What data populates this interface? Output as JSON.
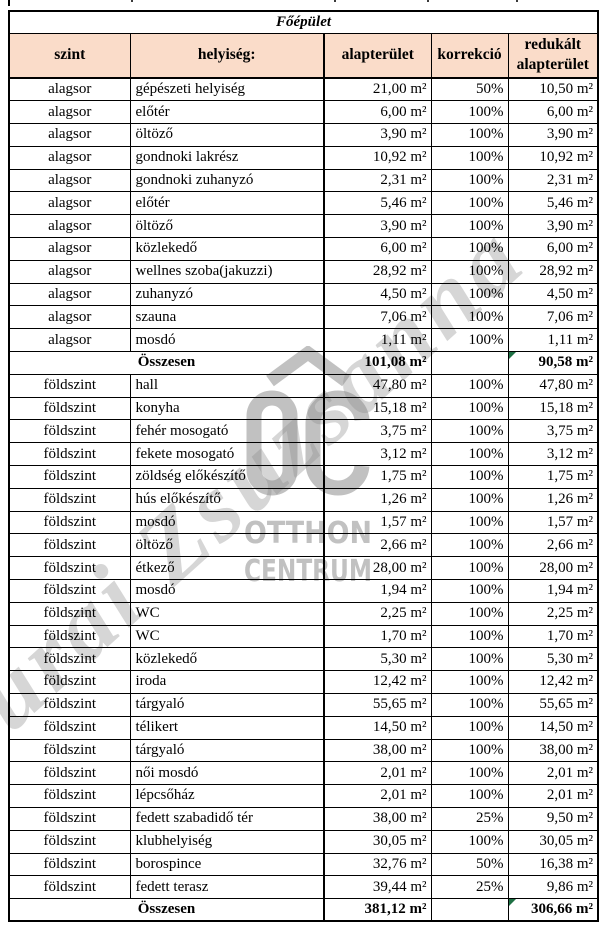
{
  "table": {
    "title": "Főépület",
    "columns": [
      "szint",
      "helyiség:",
      "alapterület",
      "korrekció",
      "redukált alapterület"
    ],
    "sections": [
      {
        "level": "alagsor",
        "rows": [
          {
            "szint": "alagsor",
            "helyiseg": "gépészeti helyiség",
            "alapterulet": "21,00 m²",
            "korrekcio": "50%",
            "redukalt": "10,50 m²"
          },
          {
            "szint": "alagsor",
            "helyiseg": "előtér",
            "alapterulet": "6,00 m²",
            "korrekcio": "100%",
            "redukalt": "6,00 m²"
          },
          {
            "szint": "alagsor",
            "helyiseg": "öltöző",
            "alapterulet": "3,90 m²",
            "korrekcio": "100%",
            "redukalt": "3,90 m²"
          },
          {
            "szint": "alagsor",
            "helyiseg": "gondnoki lakrész",
            "alapterulet": "10,92 m²",
            "korrekcio": "100%",
            "redukalt": "10,92 m²"
          },
          {
            "szint": "alagsor",
            "helyiseg": "gondnoki zuhanyzó",
            "alapterulet": "2,31 m²",
            "korrekcio": "100%",
            "redukalt": "2,31 m²"
          },
          {
            "szint": "alagsor",
            "helyiseg": "előtér",
            "alapterulet": "5,46 m²",
            "korrekcio": "100%",
            "redukalt": "5,46 m²"
          },
          {
            "szint": "alagsor",
            "helyiseg": "öltöző",
            "alapterulet": "3,90 m²",
            "korrekcio": "100%",
            "redukalt": "3,90 m²"
          },
          {
            "szint": "alagsor",
            "helyiseg": "közlekedő",
            "alapterulet": "6,00 m²",
            "korrekcio": "100%",
            "redukalt": "6,00 m²"
          },
          {
            "szint": "alagsor",
            "helyiseg": "wellnes szoba(jakuzzi)",
            "alapterulet": "28,92 m²",
            "korrekcio": "100%",
            "redukalt": "28,92 m²"
          },
          {
            "szint": "alagsor",
            "helyiseg": "zuhanyzó",
            "alapterulet": "4,50 m²",
            "korrekcio": "100%",
            "redukalt": "4,50 m²"
          },
          {
            "szint": "alagsor",
            "helyiseg": "szauna",
            "alapterulet": "7,06 m²",
            "korrekcio": "100%",
            "redukalt": "7,06 m²"
          },
          {
            "szint": "alagsor",
            "helyiseg": "mosdó",
            "alapterulet": "1,11 m²",
            "korrekcio": "100%",
            "redukalt": "1,11 m²"
          }
        ],
        "total": {
          "label": "Összesen",
          "alapterulet": "101,08 m²",
          "korrekcio": "",
          "redukalt": "90,58 m²",
          "has_marker": true
        }
      },
      {
        "level": "földszint",
        "rows": [
          {
            "szint": "földszint",
            "helyiseg": "hall",
            "alapterulet": "47,80 m²",
            "korrekcio": "100%",
            "redukalt": "47,80 m²"
          },
          {
            "szint": "földszint",
            "helyiseg": "konyha",
            "alapterulet": "15,18 m²",
            "korrekcio": "100%",
            "redukalt": "15,18 m²"
          },
          {
            "szint": "földszint",
            "helyiseg": "fehér mosogató",
            "alapterulet": "3,75 m²",
            "korrekcio": "100%",
            "redukalt": "3,75 m²"
          },
          {
            "szint": "földszint",
            "helyiseg": "fekete mosogató",
            "alapterulet": "3,12 m²",
            "korrekcio": "100%",
            "redukalt": "3,12 m²"
          },
          {
            "szint": "földszint",
            "helyiseg": "zöldség előkészítő",
            "alapterulet": "1,75 m²",
            "korrekcio": "100%",
            "redukalt": "1,75 m²"
          },
          {
            "szint": "földszint",
            "helyiseg": "hús előkészítő",
            "alapterulet": "1,26 m²",
            "korrekcio": "100%",
            "redukalt": "1,26 m²"
          },
          {
            "szint": "földszint",
            "helyiseg": "mosdó",
            "alapterulet": "1,57 m²",
            "korrekcio": "100%",
            "redukalt": "1,57 m²"
          },
          {
            "szint": "földszint",
            "helyiseg": "öltöző",
            "alapterulet": "2,66 m²",
            "korrekcio": "100%",
            "redukalt": "2,66 m²"
          },
          {
            "szint": "földszint",
            "helyiseg": "étkező",
            "alapterulet": "28,00 m²",
            "korrekcio": "100%",
            "redukalt": "28,00 m²"
          },
          {
            "szint": "földszint",
            "helyiseg": "mosdó",
            "alapterulet": "1,94 m²",
            "korrekcio": "100%",
            "redukalt": "1,94 m²"
          },
          {
            "szint": "földszint",
            "helyiseg": "WC",
            "alapterulet": "2,25 m²",
            "korrekcio": "100%",
            "redukalt": "2,25 m²"
          },
          {
            "szint": "földszint",
            "helyiseg": "WC",
            "alapterulet": "1,70 m²",
            "korrekcio": "100%",
            "redukalt": "1,70 m²"
          },
          {
            "szint": "földszint",
            "helyiseg": "közlekedő",
            "alapterulet": "5,30 m²",
            "korrekcio": "100%",
            "redukalt": "5,30 m²"
          },
          {
            "szint": "földszint",
            "helyiseg": "iroda",
            "alapterulet": "12,42 m²",
            "korrekcio": "100%",
            "redukalt": "12,42 m²"
          },
          {
            "szint": "földszint",
            "helyiseg": "tárgyaló",
            "alapterulet": "55,65 m²",
            "korrekcio": "100%",
            "redukalt": "55,65 m²"
          },
          {
            "szint": "földszint",
            "helyiseg": "télikert",
            "alapterulet": "14,50 m²",
            "korrekcio": "100%",
            "redukalt": "14,50 m²"
          },
          {
            "szint": "földszint",
            "helyiseg": "tárgyaló",
            "alapterulet": "38,00 m²",
            "korrekcio": "100%",
            "redukalt": "38,00 m²"
          },
          {
            "szint": "földszint",
            "helyiseg": "női mosdó",
            "alapterulet": "2,01 m²",
            "korrekcio": "100%",
            "redukalt": "2,01 m²"
          },
          {
            "szint": "földszint",
            "helyiseg": "lépcsőház",
            "alapterulet": "2,01 m²",
            "korrekcio": "100%",
            "redukalt": "2,01 m²"
          },
          {
            "szint": "földszint",
            "helyiseg": "fedett szabadidő tér",
            "alapterulet": "38,00 m²",
            "korrekcio": "25%",
            "redukalt": "9,50 m²"
          },
          {
            "szint": "földszint",
            "helyiseg": "klubhelyiség",
            "alapterulet": "30,05 m²",
            "korrekcio": "100%",
            "redukalt": "30,05 m²"
          },
          {
            "szint": "földszint",
            "helyiseg": "borospince",
            "alapterulet": "32,76 m²",
            "korrekcio": "50%",
            "redukalt": "16,38 m²"
          },
          {
            "szint": "földszint",
            "helyiseg": "fedett terasz",
            "alapterulet": "39,44 m²",
            "korrekcio": "25%",
            "redukalt": "9,86 m²"
          }
        ],
        "total": {
          "label": "Összesen",
          "alapterulet": "381,12 m²",
          "korrekcio": "",
          "redukalt": "306,66 m²",
          "has_marker": true
        }
      }
    ]
  },
  "watermark": {
    "diagonal_text": "Burai Zsuzsanna",
    "logo_letters": "OC",
    "logo_line1": "OTTHON",
    "logo_line2": "CENTRUM"
  },
  "colors": {
    "header_bg": "#FADCC9",
    "border": "#000000",
    "marker_green": "#1E7044",
    "watermark_gray": "#8F8F8F"
  }
}
